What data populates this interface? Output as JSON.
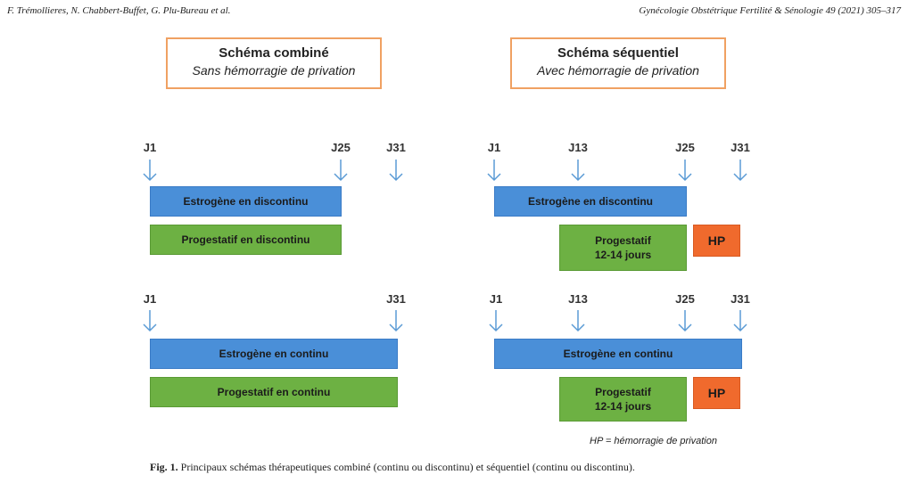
{
  "header": {
    "left": "F. Trémollieres, N. Chabbert-Buffet, G. Plu-Bureau et al.",
    "right": "Gynécologie Obstétrique Fertilité & Sénologie 49 (2021) 305–317"
  },
  "combined": {
    "title": "Schéma combiné",
    "subtitle": "Sans hémorragie de privation",
    "top": {
      "days": [
        "J1",
        "J25",
        "J31"
      ],
      "estrogen": "Estrogène en discontinu",
      "progestin": "Progestatif en discontinu"
    },
    "bottom": {
      "days": [
        "J1",
        "J31"
      ],
      "estrogen": "Estrogène en continu",
      "progestin": "Progestatif en continu"
    }
  },
  "sequential": {
    "title": "Schéma séquentiel",
    "subtitle": "Avec hémorragie de privation",
    "top": {
      "days": [
        "J1",
        "J13",
        "J25",
        "J31"
      ],
      "estrogen": "Estrogène en discontinu",
      "progestin_line1": "Progestatif",
      "progestin_line2": "12-14 jours",
      "hp": "HP"
    },
    "bottom": {
      "days": [
        "J1",
        "J13",
        "J25",
        "J31"
      ],
      "estrogen": "Estrogène en continu",
      "progestin_line1": "Progestatif",
      "progestin_line2": "12-14 jours",
      "hp": "HP"
    }
  },
  "legend": "HP = hémorragie de privation",
  "caption": {
    "label": "Fig. 1.",
    "text": " Principaux schémas thérapeutiques combiné (continu ou discontinu) et séquentiel (continu ou discontinu)."
  },
  "colors": {
    "estrogen": "#4a8fd8",
    "progestin": "#6db143",
    "hp": "#f06a2d",
    "title_border": "#f0a162",
    "arrow": "#5b9bd5"
  }
}
